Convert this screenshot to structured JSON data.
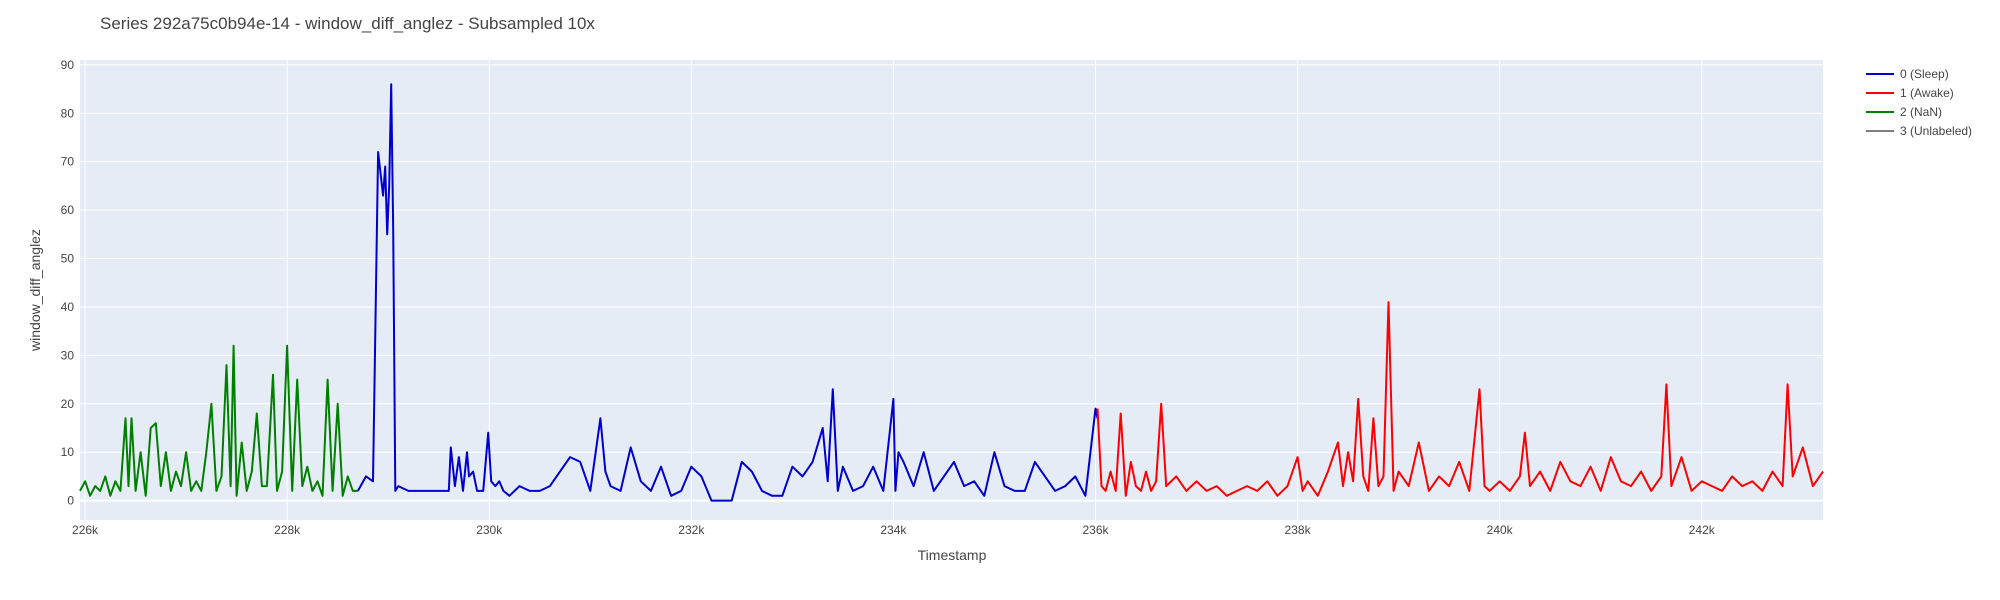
{
  "chart_data": {
    "type": "line",
    "title": "Series 292a75c0b94e-14 - window_diff_anglez - Subsampled 10x",
    "xlabel": "Timestamp",
    "ylabel": "window_diff_anglez",
    "xlim": [
      225950,
      243200
    ],
    "ylim": [
      -4,
      91
    ],
    "x_ticks": [
      226000,
      228000,
      230000,
      232000,
      234000,
      236000,
      238000,
      240000,
      242000
    ],
    "x_tick_labels": [
      "226k",
      "228k",
      "230k",
      "232k",
      "234k",
      "236k",
      "238k",
      "240k",
      "242k"
    ],
    "y_ticks": [
      0,
      10,
      20,
      30,
      40,
      50,
      60,
      70,
      80,
      90
    ],
    "y_tick_labels": [
      "0",
      "10",
      "20",
      "30",
      "40",
      "50",
      "60",
      "70",
      "80",
      "90"
    ],
    "grid": true,
    "plot_bgcolor": "#e5ecf6",
    "legend_position": "top-right",
    "series": [
      {
        "name": "0 (Sleep)",
        "color": "#0000cc",
        "x": [
          228700,
          228780,
          228850,
          228900,
          228950,
          228970,
          228990,
          229010,
          229030,
          229050,
          229070,
          229100,
          229200,
          229400,
          229600,
          229620,
          229660,
          229700,
          229740,
          229780,
          229800,
          229840,
          229880,
          229940,
          229990,
          230020,
          230060,
          230100,
          230140,
          230200,
          230300,
          230400,
          230500,
          230600,
          230700,
          230800,
          230900,
          231000,
          231100,
          231150,
          231200,
          231300,
          231400,
          231500,
          231600,
          231700,
          231800,
          231900,
          232000,
          232100,
          232200,
          232300,
          232400,
          232500,
          232600,
          232700,
          232800,
          232900,
          233000,
          233100,
          233200,
          233300,
          233350,
          233400,
          233450,
          233500,
          233600,
          233700,
          233800,
          233900,
          234000,
          234020,
          234050,
          234100,
          234200,
          234300,
          234400,
          234500,
          234600,
          234700,
          234800,
          234900,
          235000,
          235100,
          235200,
          235300,
          235400,
          235500,
          235600,
          235700,
          235800,
          235900,
          236000,
          236020
        ],
        "y": [
          2,
          5,
          4,
          72,
          63,
          69,
          55,
          65,
          86,
          56,
          2,
          3,
          2,
          2,
          2,
          11,
          3,
          9,
          2,
          10,
          5,
          6,
          2,
          2,
          14,
          4,
          3,
          4,
          2,
          1,
          3,
          2,
          2,
          3,
          6,
          9,
          8,
          2,
          17,
          6,
          3,
          2,
          11,
          4,
          2,
          7,
          1,
          2,
          7,
          5,
          0,
          0,
          0,
          8,
          6,
          2,
          1,
          1,
          7,
          5,
          8,
          15,
          4,
          23,
          2,
          7,
          2,
          3,
          7,
          2,
          21,
          2,
          10,
          8,
          3,
          10,
          2,
          5,
          8,
          3,
          4,
          1,
          10,
          3,
          2,
          2,
          8,
          5,
          2,
          3,
          5,
          1,
          19,
          17
        ]
      },
      {
        "name": "1 (Awake)",
        "color": "#ff0000",
        "x": [
          236020,
          236060,
          236100,
          236150,
          236200,
          236250,
          236300,
          236350,
          236400,
          236450,
          236500,
          236550,
          236600,
          236650,
          236700,
          236800,
          236900,
          237000,
          237100,
          237200,
          237300,
          237400,
          237500,
          237600,
          237700,
          237800,
          237900,
          238000,
          238050,
          238100,
          238200,
          238300,
          238400,
          238450,
          238500,
          238550,
          238600,
          238650,
          238700,
          238750,
          238800,
          238850,
          238900,
          238950,
          239000,
          239100,
          239200,
          239300,
          239400,
          239500,
          239600,
          239700,
          239800,
          239850,
          239900,
          240000,
          240100,
          240200,
          240250,
          240300,
          240400,
          240500,
          240600,
          240700,
          240800,
          240900,
          241000,
          241100,
          241200,
          241300,
          241400,
          241500,
          241600,
          241650,
          241700,
          241800,
          241900,
          242000,
          242100,
          242200,
          242300,
          242400,
          242500,
          242600,
          242700,
          242800,
          242850,
          242900,
          243000,
          243100,
          243200
        ],
        "y": [
          19,
          3,
          2,
          6,
          2,
          18,
          1,
          8,
          3,
          2,
          6,
          2,
          4,
          20,
          3,
          5,
          2,
          4,
          2,
          3,
          1,
          2,
          3,
          2,
          4,
          1,
          3,
          9,
          2,
          4,
          1,
          6,
          12,
          3,
          10,
          4,
          21,
          5,
          2,
          17,
          3,
          5,
          41,
          2,
          6,
          3,
          12,
          2,
          5,
          3,
          8,
          2,
          23,
          3,
          2,
          4,
          2,
          5,
          14,
          3,
          6,
          2,
          8,
          4,
          3,
          7,
          2,
          9,
          4,
          3,
          6,
          2,
          5,
          24,
          3,
          9,
          2,
          4,
          3,
          2,
          5,
          3,
          4,
          2,
          6,
          3,
          24,
          5,
          11,
          3,
          6
        ]
      },
      {
        "name": "2 (NaN)",
        "color": "#008000",
        "x": [
          225950,
          226000,
          226050,
          226100,
          226150,
          226200,
          226250,
          226300,
          226350,
          226400,
          226430,
          226460,
          226500,
          226550,
          226600,
          226650,
          226700,
          226750,
          226800,
          226850,
          226900,
          226950,
          227000,
          227050,
          227100,
          227150,
          227200,
          227250,
          227300,
          227350,
          227400,
          227440,
          227470,
          227500,
          227550,
          227600,
          227650,
          227700,
          227750,
          227800,
          227860,
          227900,
          227950,
          228000,
          228050,
          228100,
          228150,
          228200,
          228250,
          228300,
          228350,
          228400,
          228450,
          228500,
          228550,
          228600,
          228650,
          228700
        ],
        "y": [
          2,
          4,
          1,
          3,
          2,
          5,
          1,
          4,
          2,
          17,
          3,
          17,
          2,
          10,
          1,
          15,
          16,
          3,
          10,
          2,
          6,
          3,
          10,
          2,
          4,
          2,
          10,
          20,
          2,
          5,
          28,
          3,
          32,
          1,
          12,
          2,
          6,
          18,
          3,
          3,
          26,
          2,
          6,
          32,
          2,
          25,
          3,
          7,
          2,
          4,
          1,
          25,
          2,
          20,
          1,
          5,
          2,
          2
        ]
      },
      {
        "name": "3 (Unlabeled)",
        "color": "#808080",
        "x": [],
        "y": []
      }
    ]
  }
}
